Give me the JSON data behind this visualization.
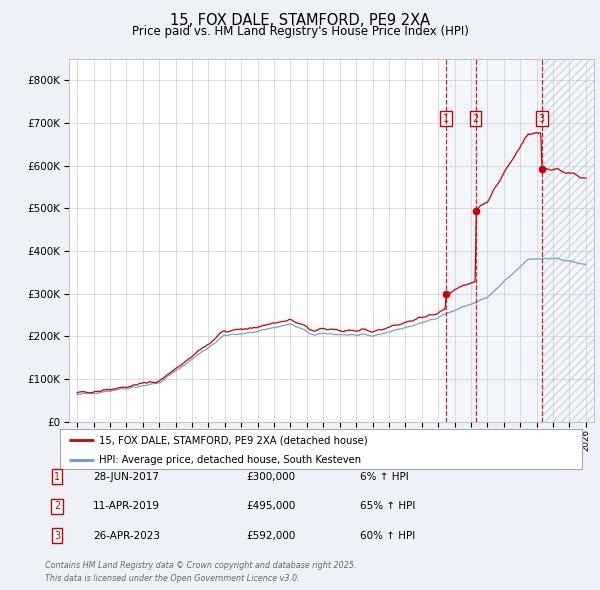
{
  "title": "15, FOX DALE, STAMFORD, PE9 2XA",
  "subtitle": "Price paid vs. HM Land Registry's House Price Index (HPI)",
  "legend_line1": "15, FOX DALE, STAMFORD, PE9 2XA (detached house)",
  "legend_line2": "HPI: Average price, detached house, South Kesteven",
  "footer": "Contains HM Land Registry data © Crown copyright and database right 2025.\nThis data is licensed under the Open Government Licence v3.0.",
  "transactions": [
    {
      "num": 1,
      "date": "28-JUN-2017",
      "price": "£300,000",
      "change": "6% ↑ HPI",
      "year": 2017.49,
      "value": 300000
    },
    {
      "num": 2,
      "date": "11-APR-2019",
      "price": "£495,000",
      "change": "65% ↑ HPI",
      "year": 2019.28,
      "value": 495000
    },
    {
      "num": 3,
      "date": "26-APR-2023",
      "price": "£592,000",
      "change": "60% ↑ HPI",
      "year": 2023.32,
      "value": 592000
    }
  ],
  "hpi_color": "#6699cc",
  "price_color": "#cc0000",
  "background_color": "#eef2f8",
  "plot_bg": "#ffffff",
  "shade_color": "#ccd9ee",
  "ylim": [
    0,
    850000
  ],
  "yticks": [
    0,
    100000,
    200000,
    300000,
    400000,
    500000,
    600000,
    700000,
    800000
  ],
  "xlim_start": 1994.5,
  "xlim_end": 2026.5
}
